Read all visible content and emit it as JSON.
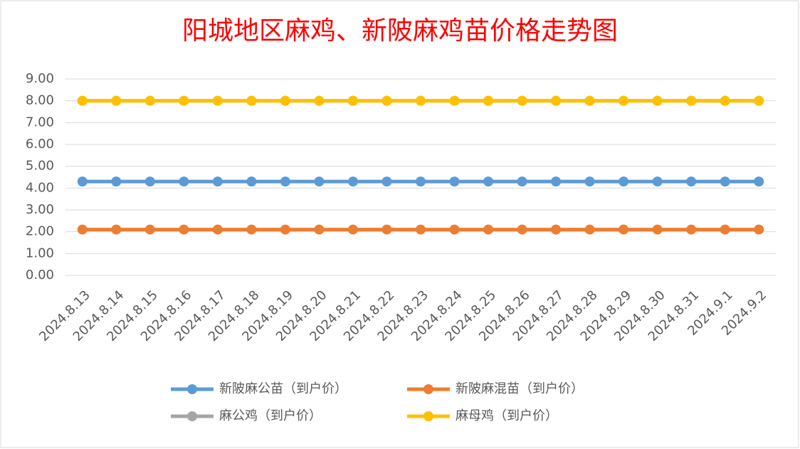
{
  "chart_data": {
    "type": "line",
    "title": "阳城地区麻鸡、新陂麻鸡苗价格走势图",
    "title_color": "#ff0000",
    "categories": [
      "2024.8.13",
      "2024.8.14",
      "2024.8.15",
      "2024.8.16",
      "2024.8.17",
      "2024.8.18",
      "2024.8.19",
      "2024.8.20",
      "2024.8.21",
      "2024.8.22",
      "2024.8.23",
      "2024.8.24",
      "2024.8.25",
      "2024.8.26",
      "2024.8.27",
      "2024.8.28",
      "2024.8.29",
      "2024.8.30",
      "2024.8.31",
      "2024.9.1",
      "2024.9.2"
    ],
    "series": [
      {
        "name": "新陂麻公苗（到户价）",
        "color": "#5b9bd5",
        "values": [
          4.3,
          4.3,
          4.3,
          4.3,
          4.3,
          4.3,
          4.3,
          4.3,
          4.3,
          4.3,
          4.3,
          4.3,
          4.3,
          4.3,
          4.3,
          4.3,
          4.3,
          4.3,
          4.3,
          4.3,
          4.3
        ]
      },
      {
        "name": "新陂麻混苗（到户价）",
        "color": "#ed7d31",
        "values": [
          2.1,
          2.1,
          2.1,
          2.1,
          2.1,
          2.1,
          2.1,
          2.1,
          2.1,
          2.1,
          2.1,
          2.1,
          2.1,
          2.1,
          2.1,
          2.1,
          2.1,
          2.1,
          2.1,
          2.1,
          2.1
        ]
      },
      {
        "name": "麻公鸡（到户价）",
        "color": "#a5a5a5",
        "values": [
          8,
          8,
          8,
          8,
          8,
          8,
          8,
          8,
          8,
          8,
          8,
          8,
          8,
          8,
          8,
          8,
          8,
          8,
          8,
          8,
          8
        ]
      },
      {
        "name": "麻母鸡（到户价）",
        "color": "#ffc000",
        "values": [
          8,
          8,
          8,
          8,
          8,
          8,
          8,
          8,
          8,
          8,
          8,
          8,
          8,
          8,
          8,
          8,
          8,
          8,
          8,
          8,
          8
        ]
      }
    ],
    "ylim": [
      0,
      9
    ],
    "yticks": [
      {
        "value": 0,
        "label": "0.00"
      },
      {
        "value": 1,
        "label": "1.00"
      },
      {
        "value": 2,
        "label": "2.00"
      },
      {
        "value": 3,
        "label": "3.00"
      },
      {
        "value": 4,
        "label": "4.00"
      },
      {
        "value": 5,
        "label": "5.00"
      },
      {
        "value": 6,
        "label": "6.00"
      },
      {
        "value": 7,
        "label": "7.00"
      },
      {
        "value": 8,
        "label": "8.00"
      },
      {
        "value": 9,
        "label": "9.00"
      }
    ],
    "grid": true,
    "legend": "bottom"
  }
}
